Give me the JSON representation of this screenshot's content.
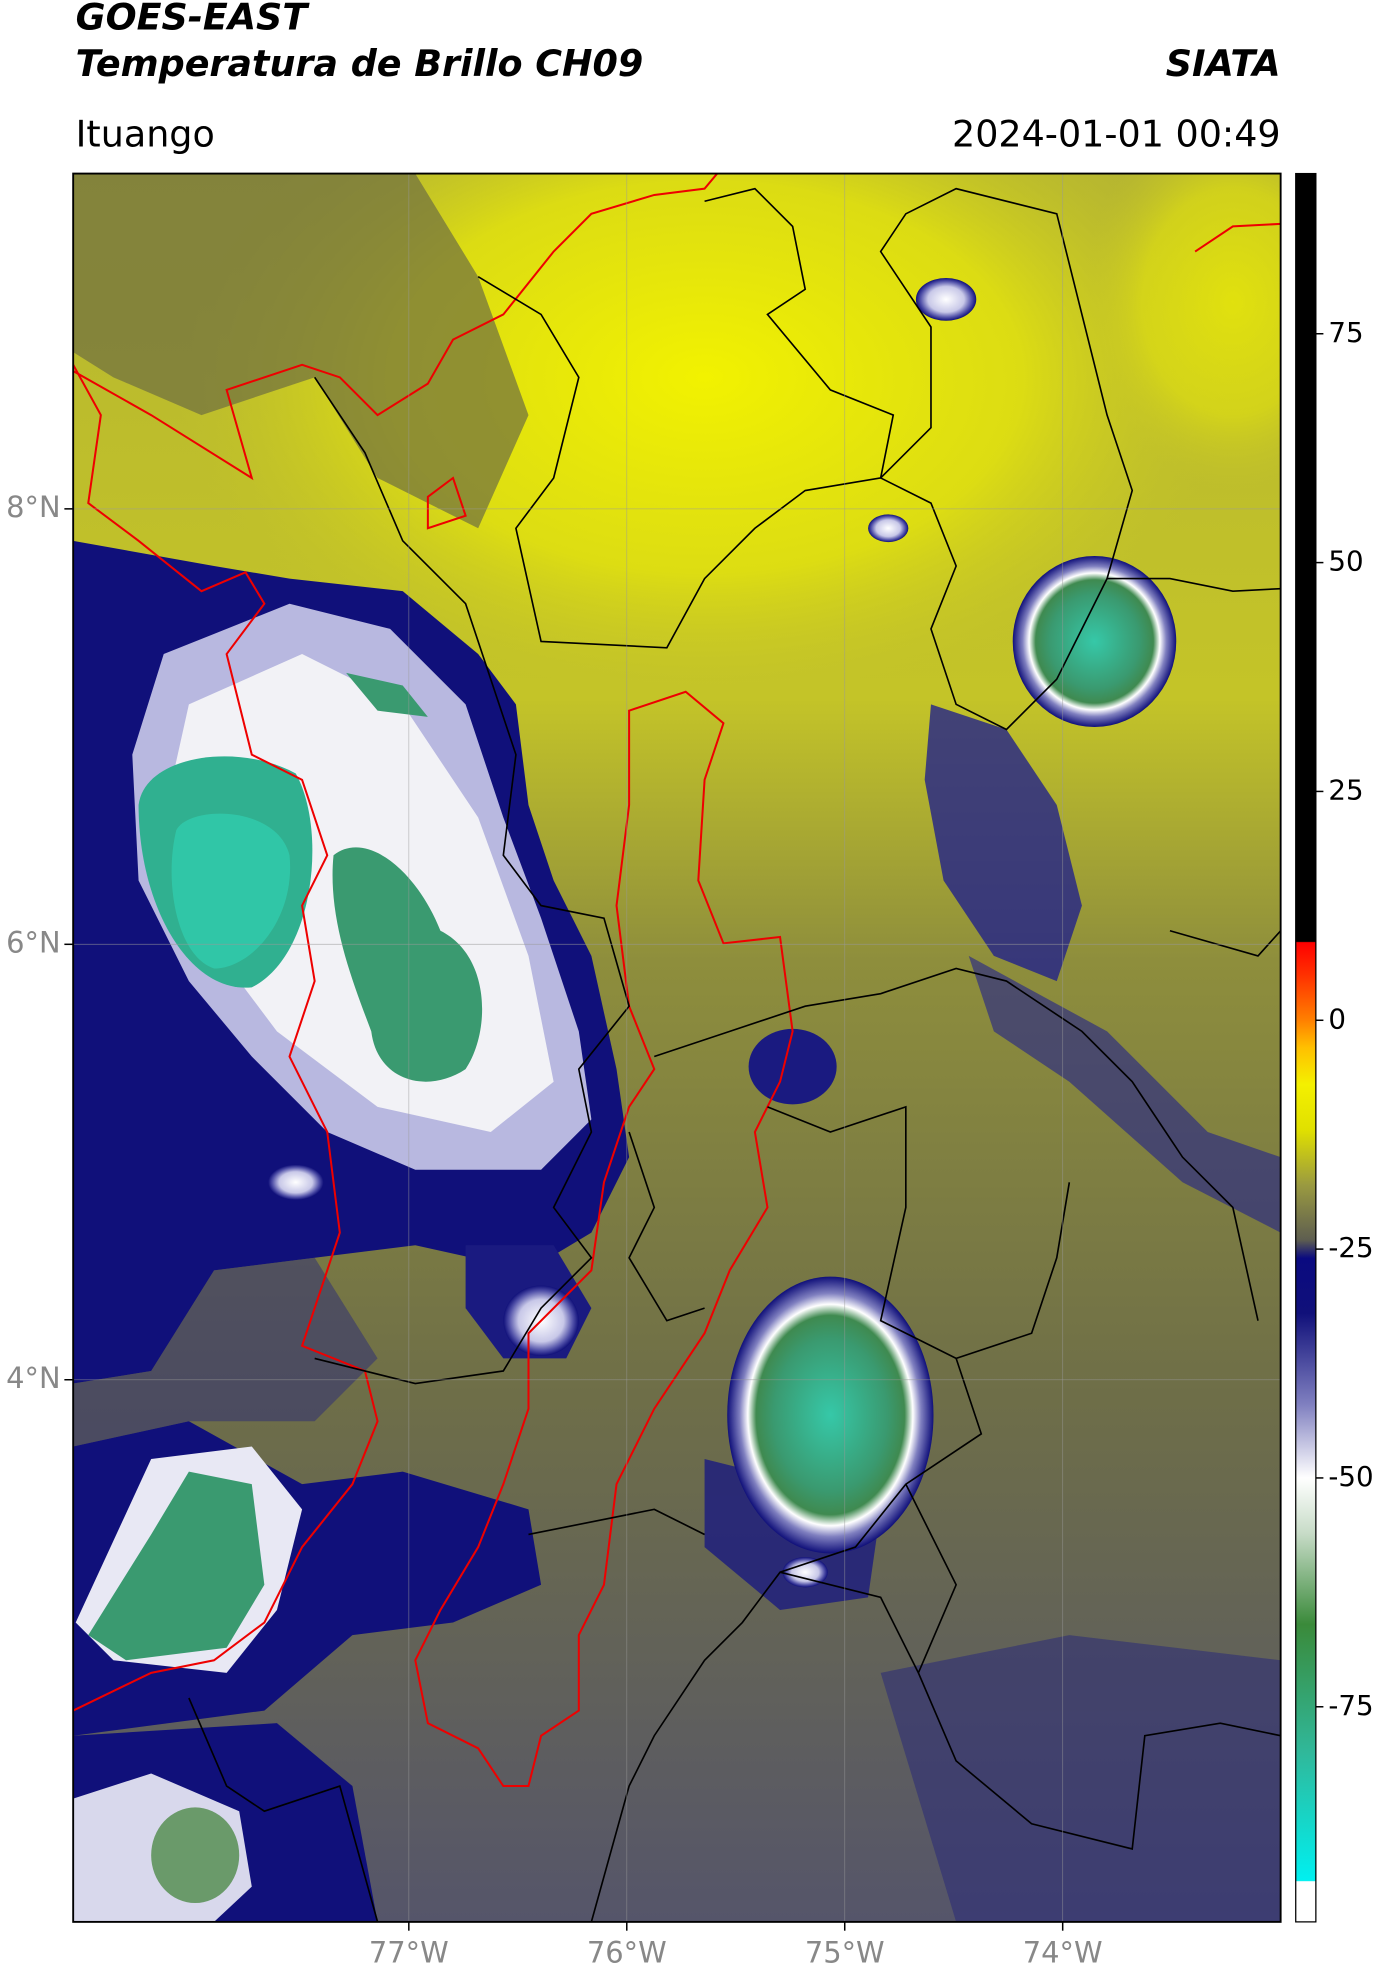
{
  "header": {
    "title": "GOES-EAST",
    "subtitle": "Temperatura de Brillo CH09",
    "brand": "SIATA",
    "location": "Ituango",
    "datetime": "2024-01-01 00:49"
  },
  "map": {
    "xlim": [
      -78.54,
      -73.0
    ],
    "ylim": [
      1.51,
      9.54
    ],
    "xticks": [
      {
        "value": -77,
        "label": "77°W"
      },
      {
        "value": -76,
        "label": "76°W"
      },
      {
        "value": -75,
        "label": "75°W"
      },
      {
        "value": -74,
        "label": "74°W"
      }
    ],
    "yticks": [
      {
        "value": 8,
        "label": "8°N"
      },
      {
        "value": 6,
        "label": "6°N"
      },
      {
        "value": 4,
        "label": "4°N"
      }
    ],
    "grid": true
  },
  "colorbar": {
    "lim": [
      -98.5,
      92.5
    ],
    "ticks": [
      75,
      50,
      25,
      0,
      -25,
      -50,
      -75
    ],
    "colormap": [
      {
        "value": -98.5,
        "color": "#ffffff"
      },
      {
        "value": -94.1,
        "color": "#ffffff"
      },
      {
        "value": -94,
        "color": "#00f0f0"
      },
      {
        "value": -80,
        "color": "#30b89a"
      },
      {
        "value": -66,
        "color": "#3a8a3a"
      },
      {
        "value": -56,
        "color": "#c8dcc8"
      },
      {
        "value": -50,
        "color": "#ffffff"
      },
      {
        "value": -42,
        "color": "#8080c0"
      },
      {
        "value": -32,
        "color": "#10107a"
      },
      {
        "value": -26,
        "color": "#0a0a80"
      },
      {
        "value": -24,
        "color": "#5e5e50"
      },
      {
        "value": -18,
        "color": "#9a9a40"
      },
      {
        "value": -12,
        "color": "#e0e000"
      },
      {
        "value": -7,
        "color": "#f4f000"
      },
      {
        "value": -3,
        "color": "#ffc000"
      },
      {
        "value": 0,
        "color": "#ff8000"
      },
      {
        "value": 5,
        "color": "#ff3000"
      },
      {
        "value": 8.5,
        "color": "#ff0000"
      },
      {
        "value": 8.6,
        "color": "#000000"
      },
      {
        "value": 92.5,
        "color": "#000000"
      }
    ]
  }
}
